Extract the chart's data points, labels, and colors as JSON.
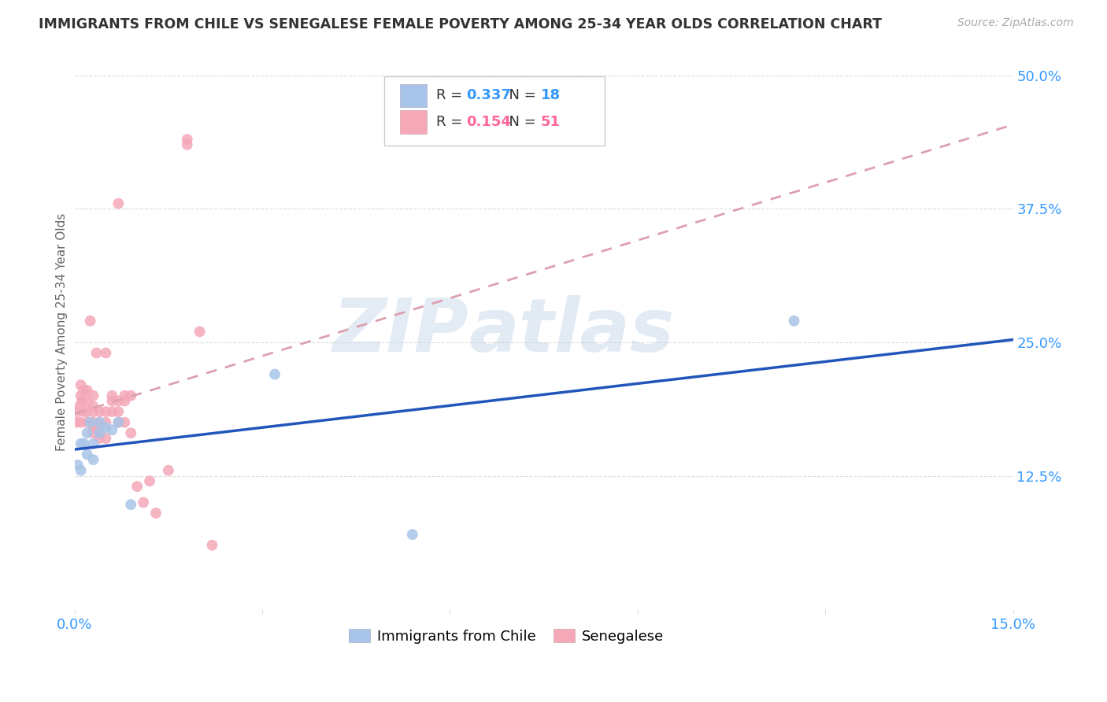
{
  "title": "IMMIGRANTS FROM CHILE VS SENEGALESE FEMALE POVERTY AMONG 25-34 YEAR OLDS CORRELATION CHART",
  "source": "Source: ZipAtlas.com",
  "ylabel": "Female Poverty Among 25-34 Year Olds",
  "xlim": [
    0.0,
    0.15
  ],
  "ylim": [
    0.0,
    0.52
  ],
  "yticks_right": [
    0.125,
    0.25,
    0.375,
    0.5
  ],
  "ytick_labels_right": [
    "12.5%",
    "25.0%",
    "37.5%",
    "50.0%"
  ],
  "xticks": [
    0.0,
    0.03,
    0.06,
    0.09,
    0.12,
    0.15
  ],
  "xtick_labels": [
    "0.0%",
    "",
    "",
    "",
    "",
    "15.0%"
  ],
  "watermark_zip": "ZIP",
  "watermark_atlas": "atlas",
  "blue_color": "#a8c4e8",
  "pink_color": "#f4a8b8",
  "blue_line_color": "#2255bb",
  "pink_line_color": "#e06080",
  "pink_dash_color": "#dda0b0",
  "R_blue": 0.337,
  "N_blue": 18,
  "R_pink": 0.154,
  "N_pink": 51,
  "legend_label_blue": "Immigrants from Chile",
  "legend_label_pink": "Senegalese",
  "chile_x": [
    0.0005,
    0.001,
    0.001,
    0.0015,
    0.002,
    0.002,
    0.0025,
    0.003,
    0.003,
    0.004,
    0.004,
    0.005,
    0.006,
    0.007,
    0.009,
    0.032,
    0.054,
    0.115
  ],
  "chile_y": [
    0.135,
    0.155,
    0.13,
    0.155,
    0.165,
    0.145,
    0.175,
    0.155,
    0.14,
    0.175,
    0.165,
    0.17,
    0.168,
    0.175,
    0.098,
    0.22,
    0.07,
    0.27
  ],
  "senegal_x": [
    0.0003,
    0.0005,
    0.0008,
    0.001,
    0.001,
    0.001,
    0.0012,
    0.0015,
    0.0015,
    0.002,
    0.002,
    0.002,
    0.002,
    0.0025,
    0.003,
    0.003,
    0.003,
    0.003,
    0.003,
    0.003,
    0.0035,
    0.004,
    0.004,
    0.004,
    0.004,
    0.004,
    0.005,
    0.005,
    0.005,
    0.005,
    0.006,
    0.006,
    0.006,
    0.007,
    0.007,
    0.007,
    0.007,
    0.008,
    0.008,
    0.008,
    0.009,
    0.009,
    0.01,
    0.011,
    0.012,
    0.013,
    0.015,
    0.018,
    0.018,
    0.02,
    0.022
  ],
  "senegal_y": [
    0.175,
    0.185,
    0.19,
    0.21,
    0.2,
    0.175,
    0.195,
    0.205,
    0.185,
    0.175,
    0.185,
    0.195,
    0.205,
    0.27,
    0.19,
    0.2,
    0.185,
    0.175,
    0.17,
    0.165,
    0.24,
    0.185,
    0.175,
    0.17,
    0.165,
    0.16,
    0.24,
    0.185,
    0.175,
    0.16,
    0.2,
    0.195,
    0.185,
    0.38,
    0.195,
    0.185,
    0.175,
    0.2,
    0.195,
    0.175,
    0.2,
    0.165,
    0.115,
    0.1,
    0.12,
    0.09,
    0.13,
    0.44,
    0.435,
    0.26,
    0.06
  ]
}
